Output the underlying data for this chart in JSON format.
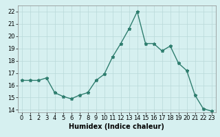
{
  "x": [
    0,
    1,
    2,
    3,
    4,
    5,
    6,
    7,
    8,
    9,
    10,
    11,
    12,
    13,
    14,
    15,
    16,
    17,
    18,
    19,
    20,
    21,
    22,
    23
  ],
  "y": [
    16.4,
    16.4,
    16.4,
    16.6,
    15.4,
    15.1,
    14.9,
    15.2,
    15.4,
    16.4,
    16.9,
    18.3,
    19.4,
    20.6,
    22.0,
    19.4,
    19.4,
    18.8,
    19.2,
    17.8,
    17.2,
    15.2,
    14.1,
    13.9
  ],
  "line_color": "#2e7d6e",
  "marker": "*",
  "marker_size": 3.5,
  "bg_color": "#d6f0f0",
  "grid_color": "#b8d8d8",
  "xlabel": "Humidex (Indice chaleur)",
  "xlim": [
    -0.5,
    23.5
  ],
  "ylim": [
    13.8,
    22.5
  ],
  "yticks": [
    14,
    15,
    16,
    17,
    18,
    19,
    20,
    21,
    22
  ],
  "xticks": [
    0,
    1,
    2,
    3,
    4,
    5,
    6,
    7,
    8,
    9,
    10,
    11,
    12,
    13,
    14,
    15,
    16,
    17,
    18,
    19,
    20,
    21,
    22,
    23
  ],
  "xlabel_fontsize": 7,
  "tick_fontsize": 6
}
